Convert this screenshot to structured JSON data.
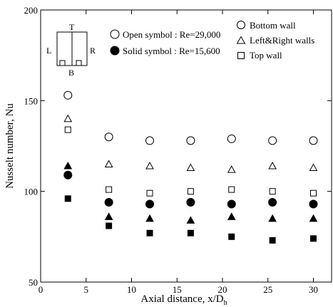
{
  "chart_data": {
    "type": "scatter",
    "xlabel": "Axial distance, x/D",
    "xlabel_subscript": "h",
    "ylabel": "Nusselt number, Nu",
    "xlim": [
      0,
      32
    ],
    "ylim": [
      50,
      200
    ],
    "x_ticks": [
      0,
      5,
      10,
      15,
      20,
      25,
      30
    ],
    "y_ticks": [
      50,
      100,
      150,
      200
    ],
    "legend": {
      "open_symbol": "Open symbol : Re=29,000",
      "solid_symbol": "Solid symbol : Re=15,600",
      "bottom_wall": "Bottom wall",
      "side_walls": "Left&Right walls",
      "top_wall": "Top wall"
    },
    "inset_labels": {
      "top": "T",
      "left": "L",
      "right": "R",
      "bottom": "B"
    },
    "series": [
      {
        "name": "Bottom wall",
        "reynolds": "29,000",
        "marker": "circle",
        "filled": false,
        "x": [
          3,
          7.5,
          12,
          16.5,
          21,
          25.5,
          30
        ],
        "y": [
          153,
          130,
          128,
          128,
          129,
          128,
          128
        ]
      },
      {
        "name": "Left&Right walls",
        "reynolds": "29,000",
        "marker": "triangle",
        "filled": false,
        "x": [
          3,
          7.5,
          12,
          16.5,
          21,
          25.5,
          30
        ],
        "y": [
          140,
          115,
          114,
          113,
          112,
          114,
          113
        ]
      },
      {
        "name": "Top wall",
        "reynolds": "29,000",
        "marker": "square",
        "filled": false,
        "x": [
          3,
          7.5,
          12,
          16.5,
          21,
          25.5,
          30
        ],
        "y": [
          134,
          101,
          99,
          100,
          101,
          100,
          99
        ]
      },
      {
        "name": "Bottom wall",
        "reynolds": "15,600",
        "marker": "circle",
        "filled": true,
        "x": [
          3,
          7.5,
          12,
          16.5,
          21,
          25.5,
          30
        ],
        "y": [
          109,
          94,
          93,
          94,
          93,
          94,
          93
        ]
      },
      {
        "name": "Left&Right walls",
        "reynolds": "15,600",
        "marker": "triangle",
        "filled": true,
        "x": [
          3,
          7.5,
          12,
          16.5,
          21,
          25.5,
          30
        ],
        "y": [
          114,
          86,
          85,
          84,
          86,
          85,
          85
        ]
      },
      {
        "name": "Top wall",
        "reynolds": "15,600",
        "marker": "square",
        "filled": true,
        "x": [
          3,
          7.5,
          12,
          16.5,
          21,
          25.5,
          30
        ],
        "y": [
          96,
          81,
          77,
          77,
          75,
          73,
          74
        ]
      }
    ]
  }
}
